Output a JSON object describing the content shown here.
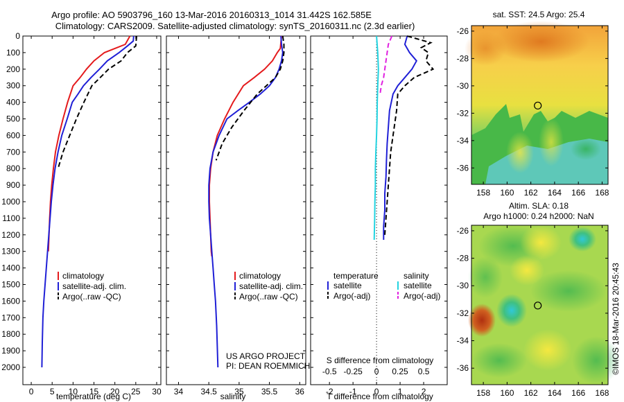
{
  "title_line1": "Argo profile: AO 5903796_160 13-Mar-2016 20160313_1014 31.442S 162.585E",
  "title_line2": "Climatology: CARS2009. Satellite-adjusted climatology: synTS_20160311.nc (2.3d earlier)",
  "colors": {
    "climatology": "#e41a1c",
    "satellite": "#1f1fd6",
    "argo": "#000000",
    "salinity_sat": "#22d3e0",
    "salinity_argo": "#e020e0"
  },
  "project_line1": "US ARGO PROJECT",
  "project_line2": "PI: DEAN ROEMMICH",
  "watermark": "©IMOS 18-Mar-2016 20:45:43",
  "map1_title": "sat. SST: 24.5  Argo: 25.4",
  "map2_title1": "Altim. SLA: 0.18",
  "map2_title2": "Argo h1000: 0.24 h2000: NaN",
  "chart_data": [
    {
      "type": "line",
      "name": "temperature-profile",
      "xlabel": "temperature (deg C)",
      "ylabel": "",
      "xlim": [
        -2,
        31
      ],
      "ylim": [
        2100,
        0
      ],
      "xticks": [
        0,
        5,
        10,
        15,
        20,
        25,
        30
      ],
      "yticks": [
        0,
        100,
        200,
        300,
        400,
        500,
        600,
        700,
        800,
        900,
        1000,
        1100,
        1200,
        1300,
        1400,
        1500,
        1600,
        1700,
        1800,
        1900,
        2000
      ],
      "legend": [
        "climatology",
        "satellite-adj. clim.",
        "Argo(..raw -QC)"
      ],
      "legend_position": "bottom-left",
      "series": [
        {
          "name": "climatology",
          "style": "solid",
          "color": "#e41a1c",
          "x": [
            23.6,
            22.5,
            20,
            17.5,
            15,
            13.2,
            11.7,
            10,
            8.7,
            7.6,
            6.6,
            5.8,
            5.3,
            4.9,
            4.6,
            4.4,
            4.25,
            4.1
          ],
          "y": [
            0,
            50,
            75,
            100,
            150,
            200,
            250,
            300,
            400,
            500,
            600,
            700,
            800,
            900,
            1000,
            1100,
            1200,
            1300
          ]
        },
        {
          "name": "satellite-adj. clim.",
          "style": "solid",
          "color": "#1f1fd6",
          "x": [
            24.5,
            24.4,
            23,
            21,
            18.2,
            16.3,
            14.3,
            12.5,
            11.2,
            9.8,
            8.6,
            7.3,
            6.4,
            5.7,
            5.2,
            4.8,
            4.5,
            4.2,
            3.9,
            3.6,
            3.3,
            3.0,
            2.8,
            2.65,
            2.55
          ],
          "y": [
            0,
            30,
            60,
            100,
            150,
            200,
            250,
            300,
            350,
            400,
            500,
            600,
            700,
            800,
            900,
            1000,
            1100,
            1200,
            1300,
            1400,
            1500,
            1600,
            1700,
            1850,
            2000
          ]
        },
        {
          "name": "Argo(..raw -QC)",
          "style": "dashed",
          "color": "#000000",
          "x": [
            25.2,
            25.1,
            25,
            23,
            21.5,
            18.5,
            16.5,
            14.5,
            12.6,
            10.8,
            9.2,
            7.6,
            6.4
          ],
          "y": [
            0,
            30,
            60,
            100,
            150,
            200,
            250,
            300,
            400,
            500,
            600,
            700,
            800
          ]
        }
      ]
    },
    {
      "type": "line",
      "name": "salinity-profile",
      "xlabel": "salinity",
      "ylabel": "",
      "xlim": [
        33.8,
        36.1
      ],
      "ylim": [
        2100,
        0
      ],
      "xticks": [
        34,
        34.5,
        35,
        35.5,
        36
      ],
      "legend": [
        "climatology",
        "satellite-adj. clim.",
        "Argo(..raw -QC)"
      ],
      "legend_position": "bottom-right",
      "series": [
        {
          "name": "climatology",
          "style": "solid",
          "color": "#e41a1c",
          "x": [
            35.7,
            35.68,
            35.63,
            35.55,
            35.42,
            35.25,
            35.07,
            34.9,
            34.76,
            34.64,
            34.57,
            34.53,
            34.51,
            34.51,
            34.52,
            34.53,
            34.54,
            34.55
          ],
          "y": [
            0,
            75,
            100,
            150,
            200,
            250,
            300,
            400,
            500,
            600,
            700,
            800,
            900,
            1000,
            1100,
            1200,
            1300,
            1330
          ]
        },
        {
          "name": "satellite-adj. clim.",
          "style": "solid",
          "color": "#1f1fd6",
          "x": [
            35.69,
            35.7,
            35.72,
            35.7,
            35.66,
            35.6,
            35.5,
            35.35,
            35.17,
            34.98,
            34.8,
            34.67,
            34.57,
            34.52,
            34.5,
            34.5,
            34.51,
            34.53,
            34.55,
            34.57,
            34.59,
            34.61,
            34.63,
            34.65
          ],
          "y": [
            0,
            50,
            100,
            150,
            200,
            250,
            300,
            350,
            400,
            450,
            500,
            600,
            700,
            800,
            900,
            1000,
            1100,
            1200,
            1300,
            1400,
            1500,
            1600,
            1750,
            2000
          ]
        },
        {
          "name": "Argo(..raw -QC)",
          "style": "dashed",
          "color": "#000000",
          "x": [
            35.72,
            35.74,
            35.74,
            35.72,
            35.68,
            35.6,
            35.45,
            35.3,
            35.08,
            34.88,
            34.72,
            34.62
          ],
          "y": [
            0,
            50,
            100,
            150,
            200,
            250,
            300,
            350,
            450,
            550,
            650,
            750
          ]
        }
      ]
    },
    {
      "type": "line",
      "name": "difference-profile",
      "xlabel": "T difference from climatology",
      "top_xlabel": "S difference from climatology",
      "xlim": [
        -2.8,
        3.0
      ],
      "ylim": [
        2100,
        0
      ],
      "xticks": [
        -2,
        -1,
        0,
        1,
        2
      ],
      "xticklabels": [
        "-2",
        "-1",
        "0",
        "1",
        "2"
      ],
      "top_xticks_T": [
        -2,
        -1,
        0,
        1,
        2
      ],
      "top_xticklabels": [
        "-0.5",
        "-0.25",
        "0",
        "0.25",
        "0.5"
      ],
      "legend_temperature_header": "temperature",
      "legend_salinity_header": "salinity",
      "legend": [
        "satellite",
        "Argo(-adj)",
        "satellite",
        "Argo(-adj)"
      ],
      "series": [
        {
          "name": "T satellite",
          "style": "solid",
          "color": "#1f1fd6",
          "x": [
            1.3,
            1.2,
            1.4,
            1.7,
            1.5,
            1.2,
            0.9,
            0.7,
            0.55,
            0.5,
            0.45,
            0.42,
            0.4,
            0.35,
            0.35,
            0.3,
            0.3,
            0.3
          ],
          "y": [
            0,
            50,
            100,
            150,
            200,
            250,
            300,
            350,
            450,
            550,
            650,
            750,
            850,
            950,
            1050,
            1150,
            1200,
            1230
          ]
        },
        {
          "name": "T Argo(-adj)",
          "style": "dashed",
          "color": "#000000",
          "x": [
            1.3,
            2.3,
            1.9,
            2.2,
            2.1,
            2.4,
            1.6,
            1.2,
            0.9,
            0.85,
            0.7,
            0.6,
            0.55,
            0.5,
            0.45,
            0.4,
            0.35
          ],
          "y": [
            0,
            40,
            70,
            100,
            150,
            200,
            250,
            300,
            350,
            450,
            600,
            700,
            800,
            900,
            1000,
            1100,
            1200
          ]
        },
        {
          "name": "S satellite",
          "style": "solid",
          "color": "#22d3e0",
          "x": [
            0,
            0.05,
            0.08,
            0.05,
            0.03,
            0.02,
            0,
            -0.03,
            -0.05,
            -0.05,
            -0.07,
            -0.08,
            -0.1
          ],
          "y": [
            0,
            100,
            200,
            300,
            400,
            500,
            600,
            700,
            800,
            900,
            1000,
            1100,
            1230
          ]
        },
        {
          "name": "S Argo(-adj)",
          "style": "dashed",
          "color": "#e020e0",
          "x": [
            0.65,
            0.5,
            0.45,
            0.4,
            0.35,
            0.3,
            0.2,
            0.15
          ],
          "y": [
            0,
            50,
            100,
            150,
            200,
            250,
            300,
            350
          ]
        }
      ]
    },
    {
      "type": "heatmap",
      "name": "sst-map",
      "title": "sat. SST: 24.5  Argo: 25.4",
      "xlim": [
        157,
        168.5
      ],
      "ylim": [
        -37.2,
        -25.6
      ],
      "xticks": [
        158,
        160,
        162,
        164,
        166,
        168
      ],
      "yticks": [
        -26,
        -28,
        -30,
        -32,
        -34,
        -36
      ],
      "argo_position": {
        "lon": 162.585,
        "lat": -31.442
      }
    },
    {
      "type": "heatmap",
      "name": "sla-map",
      "title": "Altim. SLA: 0.18",
      "subtitle": "Argo h1000: 0.24 h2000: NaN",
      "xlim": [
        157,
        168.5
      ],
      "ylim": [
        -37.2,
        -25.6
      ],
      "xticks": [
        158,
        160,
        162,
        164,
        166,
        168
      ],
      "yticks": [
        -26,
        -28,
        -30,
        -32,
        -34,
        -36
      ],
      "argo_position": {
        "lon": 162.585,
        "lat": -31.442
      }
    }
  ]
}
